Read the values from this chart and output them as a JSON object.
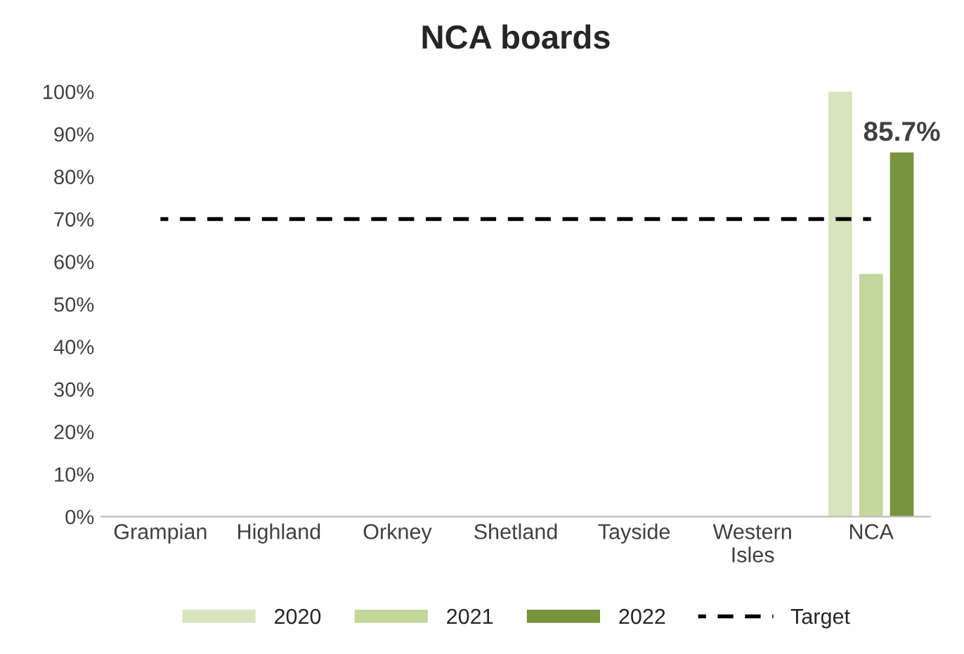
{
  "chart_data": {
    "type": "bar",
    "title": "NCA boards",
    "categories": [
      "Grampian",
      "Highland",
      "Orkney",
      "Shetland",
      "Tayside",
      "Western\nIsles",
      "NCA"
    ],
    "series": [
      {
        "name": "2020",
        "color": "#d7e4bd",
        "values": [
          null,
          null,
          null,
          null,
          null,
          null,
          100
        ]
      },
      {
        "name": "2021",
        "color": "#c3d69b",
        "values": [
          null,
          null,
          null,
          null,
          null,
          null,
          57.1
        ]
      },
      {
        "name": "2022",
        "color": "#77933c",
        "values": [
          null,
          null,
          null,
          null,
          null,
          null,
          85.7
        ],
        "value_labels": [
          null,
          null,
          null,
          null,
          null,
          null,
          "85.7%"
        ]
      },
      {
        "name": "Target",
        "type": "line",
        "color": "#000000",
        "line_style": "dashed",
        "marker": "none",
        "values": [
          70,
          70,
          70,
          70,
          70,
          70,
          70
        ]
      }
    ],
    "ylim": [
      0,
      100
    ],
    "yticks": [
      {
        "value": 0,
        "label": "0%"
      },
      {
        "value": 10,
        "label": "10%"
      },
      {
        "value": 20,
        "label": "20%"
      },
      {
        "value": 30,
        "label": "30%"
      },
      {
        "value": 40,
        "label": "40%"
      },
      {
        "value": 50,
        "label": "50%"
      },
      {
        "value": 60,
        "label": "60%"
      },
      {
        "value": 70,
        "label": "70%"
      },
      {
        "value": 80,
        "label": "80%"
      },
      {
        "value": 90,
        "label": "90%"
      },
      {
        "value": 100,
        "label": "100%"
      }
    ],
    "grid": false,
    "legend": "bottom"
  }
}
